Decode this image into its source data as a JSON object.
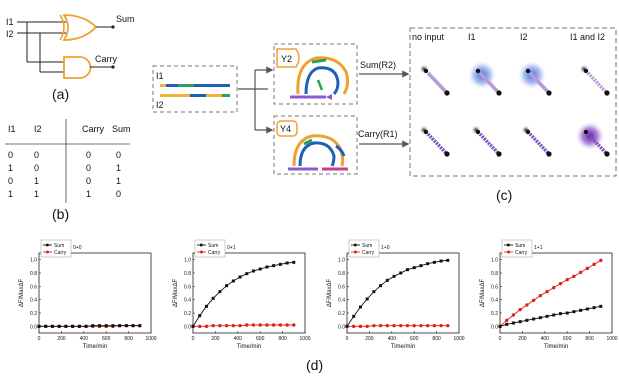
{
  "panel_labels": {
    "a": "(a)",
    "b": "(b)",
    "c": "(c)",
    "d": "(d)"
  },
  "logic_circuit": {
    "input1": "I1",
    "input2": "I2",
    "output_sum": "Sum",
    "output_carry": "Carry"
  },
  "truth_table": {
    "headers": [
      "I1",
      "I2",
      "Carry",
      "Sum"
    ],
    "rows": [
      [
        "0",
        "0",
        "0",
        "0"
      ],
      [
        "1",
        "0",
        "0",
        "1"
      ],
      [
        "0",
        "1",
        "0",
        "1"
      ],
      [
        "1",
        "1",
        "1",
        "0"
      ]
    ]
  },
  "scheme": {
    "inputs_box": {
      "top_label": "I1",
      "bottom_label": "I2"
    },
    "gate_top": {
      "tag": "Y2",
      "output_label": "Sum(R2)"
    },
    "gate_bottom": {
      "tag": "Y4",
      "output_label": "Carry(R1)"
    },
    "image_grid": {
      "column_headers": [
        "no input",
        "I1",
        "I2",
        "I1 and I2"
      ],
      "rows": [
        {
          "name": "sum",
          "glow": [
            false,
            true,
            true,
            false
          ],
          "glow_color": "#3b64d8"
        },
        {
          "name": "carry",
          "glow": [
            false,
            false,
            false,
            true
          ],
          "glow_color": "#6a1fb0"
        }
      ]
    }
  },
  "colors": {
    "sum_series": "#111111",
    "carry_series": "#e0201b",
    "gate_outline": "#f0a030",
    "dashed_frame": "#777777"
  },
  "chart_data": [
    {
      "type": "line",
      "annotation": "0+0",
      "xlabel": "Time/min",
      "ylabel": "ΔF/MaxΔF",
      "xlim": [
        0,
        1000
      ],
      "ylim": [
        -0.1,
        1.1
      ],
      "xticks": [
        "0",
        "200",
        "400",
        "600",
        "800",
        "1000"
      ],
      "yticks": [
        "0.0",
        "0.2",
        "0.4",
        "0.6",
        "0.8",
        "1.0"
      ],
      "legend": "top-left",
      "x": [
        0,
        60,
        120,
        180,
        240,
        300,
        360,
        420,
        480,
        540,
        600,
        660,
        720,
        780,
        840,
        900
      ],
      "series": [
        {
          "name": "Sum",
          "values": [
            0.0,
            0.0,
            0.0,
            0.0,
            0.0,
            0.0,
            0.0,
            0.0,
            0.01,
            0.01,
            0.01,
            0.01,
            0.01,
            0.01,
            0.01,
            0.01
          ]
        },
        {
          "name": "Carry",
          "values": [
            0.0,
            0.0,
            0.0,
            0.0,
            0.0,
            0.0,
            0.0,
            0.0,
            0.0,
            0.0,
            0.0,
            0.0,
            0.01,
            0.01,
            0.01,
            0.01
          ]
        }
      ]
    },
    {
      "type": "line",
      "annotation": "0+1",
      "xlabel": "Time/min",
      "ylabel": "ΔF/MaxΔF",
      "xlim": [
        0,
        1000
      ],
      "ylim": [
        -0.1,
        1.1
      ],
      "xticks": [
        "0",
        "200",
        "400",
        "600",
        "800",
        "1000"
      ],
      "yticks": [
        "0.0",
        "0.2",
        "0.4",
        "0.6",
        "0.8",
        "1.0"
      ],
      "legend": "top-left",
      "x": [
        0,
        60,
        120,
        180,
        240,
        300,
        360,
        420,
        480,
        540,
        600,
        660,
        720,
        780,
        840,
        900
      ],
      "series": [
        {
          "name": "Sum",
          "values": [
            0.0,
            0.16,
            0.3,
            0.42,
            0.52,
            0.61,
            0.68,
            0.74,
            0.79,
            0.83,
            0.86,
            0.89,
            0.91,
            0.93,
            0.95,
            0.96
          ]
        },
        {
          "name": "Carry",
          "values": [
            0.0,
            0.0,
            0.0,
            0.01,
            0.01,
            0.01,
            0.01,
            0.01,
            0.02,
            0.02,
            0.02,
            0.02,
            0.02,
            0.02,
            0.02,
            0.02
          ]
        }
      ]
    },
    {
      "type": "line",
      "annotation": "1+0",
      "xlabel": "Time/min",
      "ylabel": "ΔF/MaxΔF",
      "xlim": [
        0,
        1000
      ],
      "ylim": [
        -0.1,
        1.1
      ],
      "xticks": [
        "0",
        "200",
        "400",
        "600",
        "800",
        "1000"
      ],
      "yticks": [
        "0.0",
        "0.2",
        "0.4",
        "0.6",
        "0.8",
        "1.0"
      ],
      "legend": "top-left",
      "x": [
        0,
        60,
        120,
        180,
        240,
        300,
        360,
        420,
        480,
        540,
        600,
        660,
        720,
        780,
        840,
        900
      ],
      "series": [
        {
          "name": "Sum",
          "values": [
            0.0,
            0.15,
            0.29,
            0.41,
            0.52,
            0.61,
            0.69,
            0.75,
            0.8,
            0.85,
            0.88,
            0.91,
            0.94,
            0.96,
            0.98,
            0.99
          ]
        },
        {
          "name": "Carry",
          "values": [
            0.0,
            0.0,
            0.0,
            0.0,
            0.01,
            0.01,
            0.01,
            0.01,
            0.01,
            0.01,
            0.01,
            0.01,
            0.01,
            0.01,
            0.01,
            0.01
          ]
        }
      ]
    },
    {
      "type": "line",
      "annotation": "1+1",
      "xlabel": "Time/min",
      "ylabel": "ΔF/MaxΔF",
      "xlim": [
        0,
        1000
      ],
      "ylim": [
        -0.1,
        1.1
      ],
      "xticks": [
        "0",
        "200",
        "400",
        "600",
        "800",
        "1000"
      ],
      "yticks": [
        "0.0",
        "0.2",
        "0.4",
        "0.6",
        "0.8",
        "1.0"
      ],
      "legend": "top-left",
      "x": [
        0,
        60,
        120,
        180,
        240,
        300,
        360,
        420,
        480,
        540,
        600,
        660,
        720,
        780,
        840,
        900
      ],
      "series": [
        {
          "name": "Sum",
          "values": [
            0.0,
            0.03,
            0.05,
            0.07,
            0.09,
            0.11,
            0.13,
            0.15,
            0.17,
            0.19,
            0.2,
            0.22,
            0.24,
            0.26,
            0.28,
            0.3
          ]
        },
        {
          "name": "Carry",
          "values": [
            0.0,
            0.09,
            0.17,
            0.25,
            0.32,
            0.39,
            0.46,
            0.52,
            0.58,
            0.64,
            0.7,
            0.75,
            0.81,
            0.87,
            0.93,
            0.99
          ]
        }
      ]
    }
  ]
}
